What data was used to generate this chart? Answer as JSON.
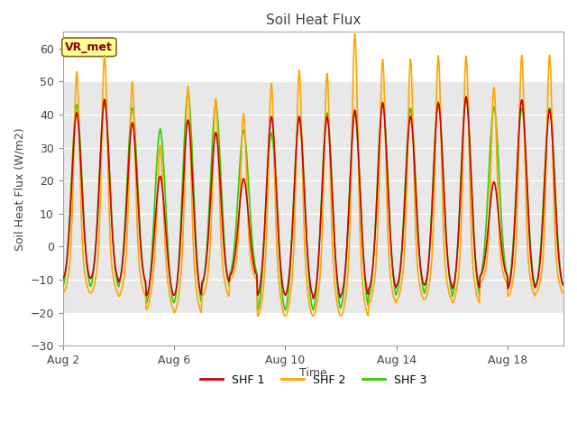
{
  "title": "Soil Heat Flux",
  "ylabel": "Soil Heat Flux (W/m2)",
  "xlabel": "Time",
  "ylim": [
    -30,
    65
  ],
  "yticks": [
    -30,
    -20,
    -10,
    0,
    10,
    20,
    30,
    40,
    50,
    60
  ],
  "fig_bg_color": "#ffffff",
  "plot_bg_color": "#ffffff",
  "band_color": "#e8e8e8",
  "grid_color": "#d3d3d3",
  "shf1_color": "#cc0000",
  "shf2_color": "#ffa500",
  "shf3_color": "#33cc00",
  "legend_label1": "SHF 1",
  "legend_label2": "SHF 2",
  "legend_label3": "SHF 3",
  "annotation_text": "VR_met",
  "x_tick_labels": [
    "Aug 2",
    "Aug 6",
    "Aug 10",
    "Aug 14",
    "Aug 18"
  ],
  "x_tick_positions": [
    0,
    4,
    8,
    12,
    16
  ],
  "linewidth": 1.2,
  "n_days": 18,
  "pts_per_day": 48
}
